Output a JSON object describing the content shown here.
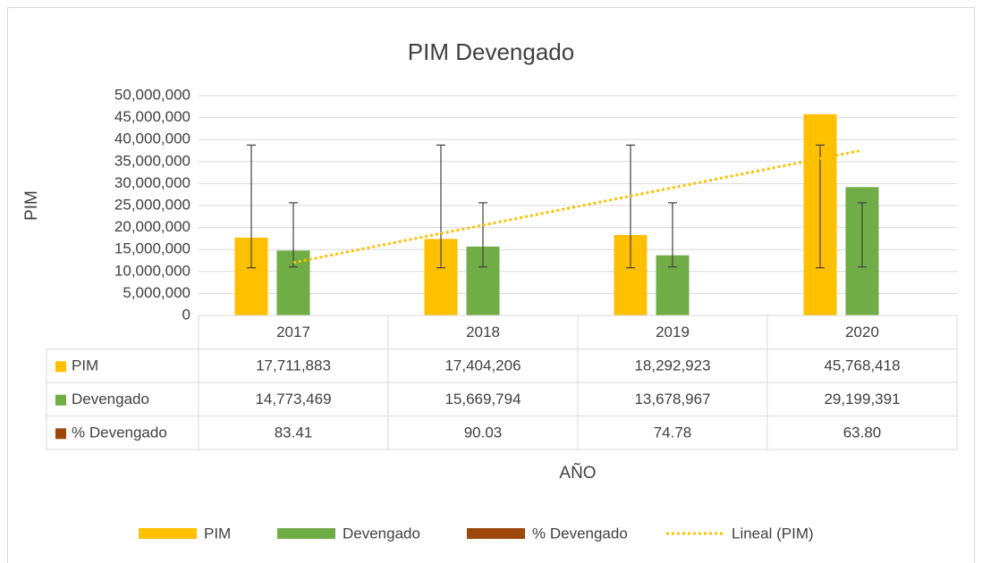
{
  "chart_data": {
    "type": "bar",
    "title": "PIM Devengado",
    "y_label": "PIM",
    "x_label": "AÑO",
    "categories": [
      "2017",
      "2018",
      "2019",
      "2020"
    ],
    "series": [
      {
        "name": "PIM",
        "color": "#ffc000",
        "values": [
          17711883,
          17404206,
          18292923,
          45768418
        ],
        "value_labels": [
          "17,711,883",
          "17,404,206",
          "18,292,923",
          "45,768,418"
        ],
        "error_center": 24794358,
        "error": 13950000
      },
      {
        "name": "Devengado",
        "color": "#70ad47",
        "values": [
          14773469,
          15669794,
          13678967,
          29199391
        ],
        "value_labels": [
          "14,773,469",
          "15,669,794",
          "13,678,967",
          "29,199,391"
        ],
        "error_center": 18330405,
        "error": 7300000
      },
      {
        "name": "% Devengado",
        "color": "#9e480e",
        "values": [
          83.41,
          90.03,
          74.78,
          63.8
        ],
        "value_labels": [
          "83.41",
          "90.03",
          "74.78",
          "63.80"
        ]
      }
    ],
    "trendline": {
      "name": "Lineal (PIM)",
      "color": "#ffc000",
      "values": [
        12030000,
        37560000
      ]
    },
    "ylim": [
      0,
      50000000
    ],
    "yticks": [
      0,
      {
        "value": 5000000,
        "label": "5,000,000"
      },
      {
        "value": 10000000,
        "label": "10,000,000"
      },
      {
        "value": 15000000,
        "label": "15,000,000"
      },
      {
        "value": 20000000,
        "label": "20,000,000"
      },
      {
        "value": 25000000,
        "label": "25,000,000"
      },
      {
        "value": 30000000,
        "label": "30,000,000"
      },
      {
        "value": 35000000,
        "label": "35,000,000"
      },
      {
        "value": 40000000,
        "label": "40,000,000"
      },
      {
        "value": 45000000,
        "label": "45,000,000"
      },
      {
        "value": 50000000,
        "label": "50,000,000"
      }
    ],
    "grid": true
  }
}
